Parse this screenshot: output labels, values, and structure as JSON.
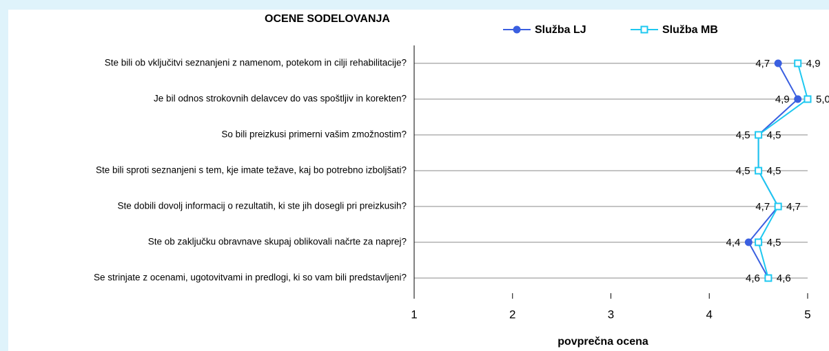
{
  "chart_data": {
    "type": "line",
    "orientation": "horizontal",
    "title": "OCENE SODELOVANJA",
    "xlabel": "povprečna ocena",
    "categories": [
      "Ste bili ob vključitvi seznanjeni z namenom, potekom in cilji rehabilitacije?",
      "Je bil odnos strokovnih delavcev do vas spoštljiv in korekten?",
      "So bili preizkusi primerni vašim zmožnostim?",
      "Ste bili sproti seznanjeni s tem, kje imate težave, kaj bo potrebno izboljšati?",
      "Ste dobili dovolj informacij o rezultatih, ki ste jih dosegli pri preizkusih?",
      "Ste ob zaključku obravnave skupaj oblikovali načrte za naprej?",
      "Se strinjate z ocenami, ugotovitvami in predlogi, ki so vam bili predstavljeni?"
    ],
    "series": [
      {
        "name": "Služba LJ",
        "color": "#3a5fe0",
        "marker": "circle",
        "values": [
          4.7,
          4.9,
          4.5,
          4.5,
          4.7,
          4.4,
          4.6
        ],
        "value_labels": [
          "4,7",
          "4,9",
          "4,5",
          "4,5",
          "4,7",
          "4,4",
          "4,6"
        ]
      },
      {
        "name": "Služba MB",
        "color": "#1ec8f0",
        "marker": "square",
        "values": [
          4.9,
          5.0,
          4.5,
          4.5,
          4.7,
          4.5,
          4.6
        ],
        "value_labels": [
          "4,9",
          "5,0",
          "4,5",
          "4,5",
          "4,7",
          "4,5",
          "4,6"
        ]
      }
    ],
    "xlim": [
      1,
      5
    ],
    "xticks": [
      1,
      2,
      3,
      4,
      5
    ],
    "legend": "top"
  }
}
